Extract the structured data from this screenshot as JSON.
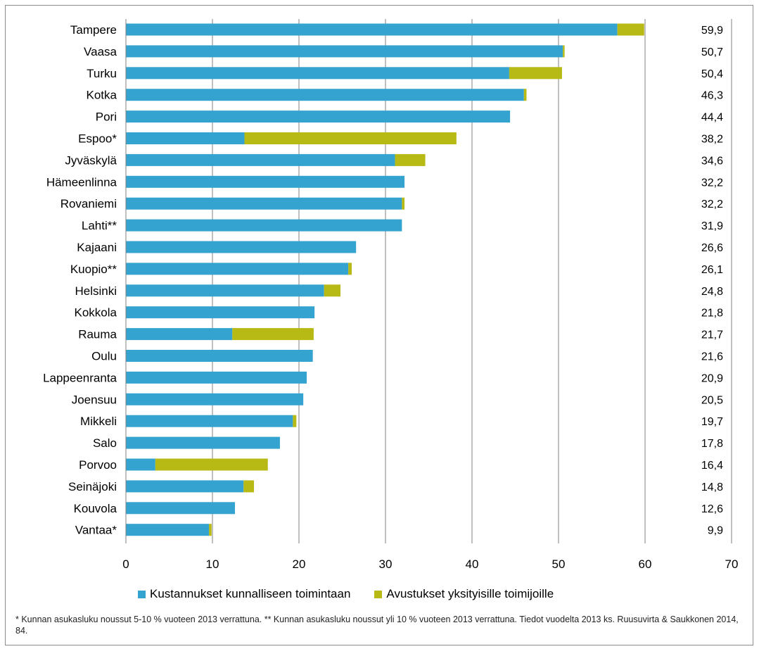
{
  "colors": {
    "primary": "#35a3cf",
    "secondary": "#b7b914",
    "grid": "#808080"
  },
  "chart_data": {
    "type": "bar",
    "orientation": "horizontal",
    "stacked": true,
    "categories": [
      "Tampere",
      "Vaasa",
      "Turku",
      "Kotka",
      "Pori",
      "Espoo*",
      "Jyväskylä",
      "Hämeenlinna",
      "Rovaniemi",
      "Lahti**",
      "Kajaani",
      "Kuopio**",
      "Helsinki",
      "Kokkola",
      "Rauma",
      "Oulu",
      "Lappeenranta",
      "Joensuu",
      "Mikkeli",
      "Salo",
      "Porvoo",
      "Seinäjoki",
      "Kouvola",
      "Vantaa*"
    ],
    "series": [
      {
        "name": "Kustannukset kunnalliseen toimintaan",
        "values": [
          56.8,
          50.5,
          44.3,
          46.0,
          44.4,
          13.7,
          31.1,
          32.2,
          31.9,
          31.9,
          26.6,
          25.7,
          22.9,
          21.8,
          12.3,
          21.6,
          20.9,
          20.5,
          19.3,
          17.8,
          3.4,
          13.6,
          12.6,
          9.6
        ]
      },
      {
        "name": "Avustukset yksityisille toimijoille",
        "values": [
          3.1,
          0.2,
          6.1,
          0.3,
          0.0,
          24.5,
          3.5,
          0.0,
          0.3,
          0.0,
          0.0,
          0.4,
          1.9,
          0.0,
          9.4,
          0.0,
          0.0,
          0.0,
          0.4,
          0.0,
          13.0,
          1.2,
          0.0,
          0.3
        ]
      }
    ],
    "totals": [
      "59,9",
      "50,7",
      "50,4",
      "46,3",
      "44,4",
      "38,2",
      "34,6",
      "32,2",
      "32,2",
      "31,9",
      "26,6",
      "26,1",
      "24,8",
      "21,8",
      "21,7",
      "21,6",
      "20,9",
      "20,5",
      "19,7",
      "17,8",
      "16,4",
      "14,8",
      "12,6",
      "9,9"
    ],
    "xlim": [
      0,
      70
    ],
    "xticks": [
      "0",
      "10",
      "20",
      "30",
      "40",
      "50",
      "60",
      "70"
    ],
    "grid": true,
    "legend_position": "bottom"
  },
  "footnote": "* Kunnan asukasluku noussut 5-10 % vuoteen 2013 verrattuna. ** Kunnan asukasluku noussut yli 10 % vuoteen 2013 verrattuna. Tiedot vuodelta 2013 ks. Ruusuvirta & Saukkonen 2014, 84."
}
